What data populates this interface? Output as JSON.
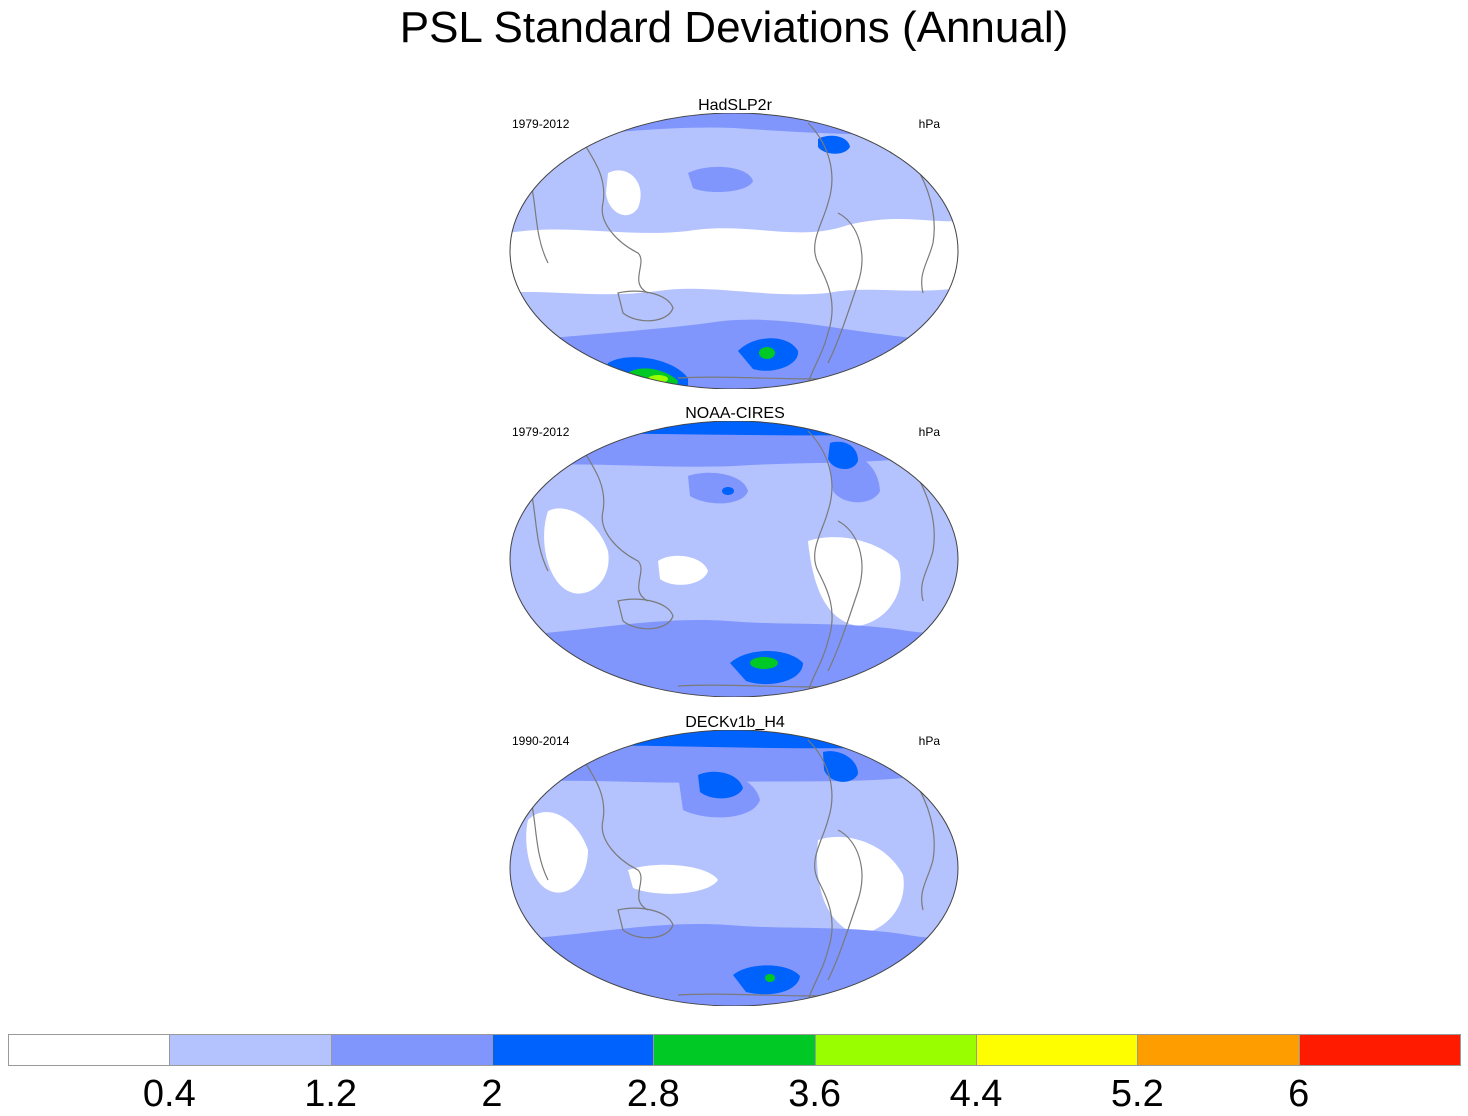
{
  "title": "PSL Standard Deviations (Annual)",
  "panels": [
    {
      "name": "HadSLP2r",
      "years": "1979-2012",
      "units": "hPa"
    },
    {
      "name": "NOAA-CIRES",
      "years": "1979-2012",
      "units": "hPa"
    },
    {
      "name": "DECKv1b_H4",
      "years": "1990-2014",
      "units": "hPa"
    }
  ],
  "colorbar": {
    "labels": [
      "0.4",
      "1.2",
      "2",
      "2.8",
      "3.6",
      "4.4",
      "5.2",
      "6"
    ],
    "colors": [
      "#ffffff",
      "#b4c2fd",
      "#8096fc",
      "#0062fd",
      "#00c825",
      "#98fe00",
      "#fffe00",
      "#fd9d00",
      "#fe1b00"
    ]
  },
  "colors": {
    "land_outline": "#7a7a7a",
    "map_border": "#444444"
  }
}
